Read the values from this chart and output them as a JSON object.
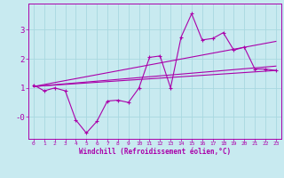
{
  "xlabel": "Windchill (Refroidissement éolien,°C)",
  "bg_color": "#c8eaf0",
  "grid_color": "#a8d8e0",
  "line_color": "#aa00aa",
  "x_ticks": [
    0,
    1,
    2,
    3,
    4,
    5,
    6,
    7,
    8,
    9,
    10,
    11,
    12,
    13,
    14,
    15,
    16,
    17,
    18,
    19,
    20,
    21,
    22,
    23
  ],
  "xlim": [
    -0.5,
    23.5
  ],
  "ylim": [
    -0.75,
    3.9
  ],
  "yticks": [
    3,
    2,
    1,
    0
  ],
  "ytick_labels": [
    "3",
    "2",
    "1",
    "-0"
  ],
  "series1_x": [
    0,
    1,
    2,
    3,
    4,
    5,
    6,
    7,
    8,
    9,
    10,
    11,
    12,
    13,
    14,
    15,
    16,
    17,
    18,
    19,
    20,
    21,
    22,
    23
  ],
  "series1_y": [
    1.1,
    0.9,
    1.0,
    0.9,
    -0.1,
    -0.55,
    -0.15,
    0.55,
    0.58,
    0.5,
    1.0,
    2.05,
    2.1,
    1.0,
    2.75,
    3.55,
    2.65,
    2.7,
    2.9,
    2.3,
    2.4,
    1.65,
    1.65,
    1.6
  ],
  "series2_x": [
    0,
    23
  ],
  "series2_y": [
    1.05,
    2.6
  ],
  "series3_x": [
    0,
    23
  ],
  "series3_y": [
    1.05,
    1.6
  ],
  "series4_x": [
    0,
    23
  ],
  "series4_y": [
    1.05,
    1.75
  ]
}
